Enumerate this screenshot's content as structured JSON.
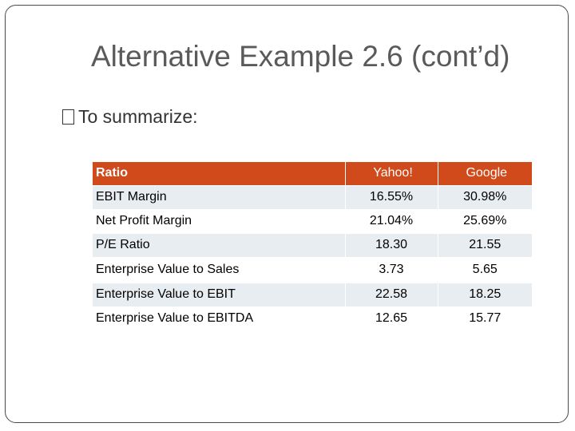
{
  "slide": {
    "title": "Alternative Example 2.6 (cont’d)",
    "bullet": "To summarize:"
  },
  "table": {
    "headers": [
      "Ratio",
      "Yahoo!",
      "Google"
    ],
    "rows": [
      {
        "name": "EBIT Margin",
        "yahoo": "16.55%",
        "google": "30.98%"
      },
      {
        "name": "Net Profit Margin",
        "yahoo": "21.04%",
        "google": "25.69%"
      },
      {
        "name": "P/E Ratio",
        "yahoo": "18.30",
        "google": "21.55"
      },
      {
        "name": "Enterprise Value to Sales",
        "yahoo": "3.73",
        "google": "5.65"
      },
      {
        "name": "Enterprise Value to EBIT",
        "yahoo": "22.58",
        "google": "18.25"
      },
      {
        "name": "Enterprise Value to EBITDA",
        "yahoo": "12.65",
        "google": "15.77"
      }
    ]
  },
  "colors": {
    "header_bg": "#d14a1c",
    "row_shade": "#e8edf1",
    "title_text": "#5a5a5a"
  }
}
